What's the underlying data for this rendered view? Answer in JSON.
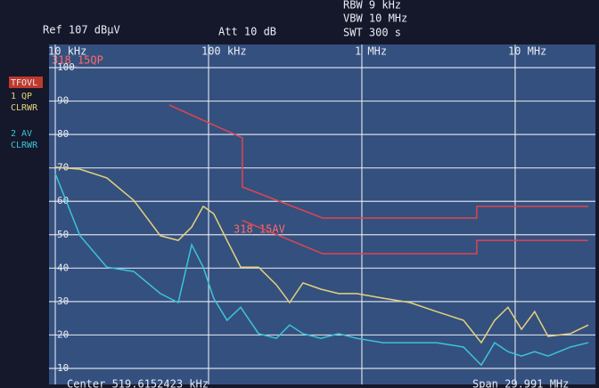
{
  "header": {
    "ref": "Ref 107 dBµV",
    "att": "Att 10 dB",
    "rbw": "RBW 9 kHz",
    "vbw": "VBW 10 MHz",
    "swt": "SWT 300 s",
    "center": "Center 519.6152423 kHz",
    "span": "Span 29.991 MHz",
    "overload": "TFOVL",
    "mode_1": "CLRWR",
    "mode_2": "CLRWR"
  },
  "chart_data": {
    "type": "line",
    "log_x": true,
    "grid": true,
    "xlim": [
      10000,
      30000000
    ],
    "ylim": [
      10,
      100
    ],
    "xticks": [
      {
        "value": 10000,
        "label": "10 kHz"
      },
      {
        "value": 100000,
        "label": "100 kHz"
      },
      {
        "value": 1000000,
        "label": "1 MHz"
      },
      {
        "value": 10000000,
        "label": "10 MHz"
      }
    ],
    "yticks": [
      100,
      90,
      80,
      70,
      60,
      50,
      40,
      30,
      20,
      10
    ],
    "series": [
      {
        "name": "1 QP",
        "color": "#e6d27c",
        "x": [
          10000,
          14500,
          21700,
          32500,
          48500,
          63400,
          77600,
          92300,
          108000,
          132000,
          162000,
          212000,
          277000,
          338000,
          413000,
          541000,
          706000,
          923000,
          1380000,
          2060000,
          3080000,
          4600000,
          6010000,
          7350000,
          8980000,
          11000000,
          13400000,
          16400000,
          22900000,
          30000000
        ],
        "values": [
          70.2,
          69.6,
          67,
          60.3,
          49.7,
          48.3,
          52.3,
          58.5,
          56.3,
          48.3,
          40.3,
          40.3,
          35,
          29.7,
          35.6,
          33.7,
          32.4,
          32.4,
          31,
          29.7,
          27,
          24.4,
          17.7,
          24.4,
          28.3,
          21.7,
          27,
          19.6,
          20.4,
          23
        ]
      },
      {
        "name": "2 AV",
        "color": "#3cc3d8",
        "x": [
          10000,
          14500,
          21700,
          32500,
          48500,
          63400,
          77600,
          92300,
          108000,
          132000,
          162000,
          212000,
          277000,
          338000,
          413000,
          541000,
          706000,
          923000,
          1380000,
          2060000,
          3080000,
          4600000,
          6010000,
          7350000,
          8980000,
          11000000,
          13400000,
          16400000,
          22900000,
          30000000
        ],
        "values": [
          68.3,
          49.7,
          40.3,
          39,
          32.4,
          29.7,
          47,
          40.3,
          31,
          24.4,
          28.3,
          20.4,
          19,
          23,
          20.4,
          19,
          20.4,
          19,
          17.7,
          17.7,
          17.7,
          16.4,
          11,
          17.7,
          15,
          13.7,
          15,
          13.7,
          16.4,
          17.7
        ]
      },
      {
        "name": "318_15QP",
        "color": "#e0454f",
        "x": [
          55500,
          166000,
          166000,
          555000,
          5620000,
          5620000,
          30000000
        ],
        "values": [
          88.8,
          79,
          64.3,
          55,
          55,
          58.5,
          58.5
        ]
      },
      {
        "name": "318_15AV",
        "color": "#e0454f",
        "x": [
          166000,
          555000,
          5620000,
          5620000,
          30000000
        ],
        "values": [
          54.3,
          44.3,
          44.3,
          48.3,
          48.3
        ]
      }
    ]
  }
}
